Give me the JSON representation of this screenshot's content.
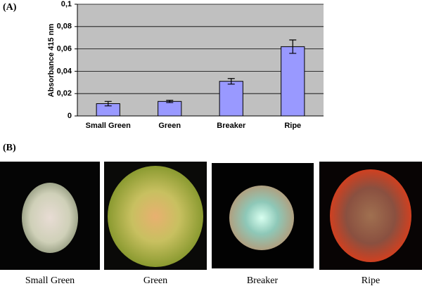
{
  "panels": {
    "a": "(A)",
    "b": "(B)"
  },
  "chart_data": {
    "type": "bar",
    "y_label": "Absorbance  415 nm",
    "categories": [
      "Small Green",
      "Green",
      "Breaker",
      "Ripe"
    ],
    "values": [
      0.011,
      0.013,
      0.031,
      0.062
    ],
    "errors": [
      0.002,
      0.001,
      0.0025,
      0.006
    ],
    "color": "#9999ff",
    "ylim": [
      0,
      0.1
    ],
    "yticks": [
      0,
      {
        "value": 0.02,
        "label": "0,02"
      },
      {
        "value": 0.04,
        "label": "0,04"
      },
      {
        "value": 0.06,
        "label": "0,06"
      },
      {
        "value": 0.08,
        "label": "0,08"
      },
      {
        "value": 0.1,
        "label": "0,1"
      }
    ],
    "grid": true
  },
  "photos": [
    {
      "caption": "Small Green"
    },
    {
      "caption": "Green"
    },
    {
      "caption": "Breaker"
    },
    {
      "caption": "Ripe"
    }
  ]
}
